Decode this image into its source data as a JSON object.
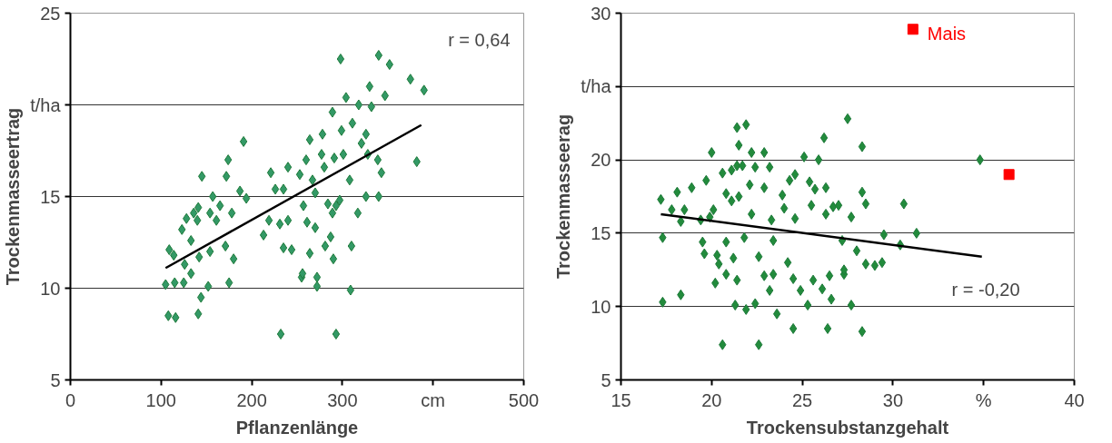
{
  "chart_data": [
    {
      "type": "scatter",
      "xlabel": "Pflanzenlänge",
      "ylabel": "Trockenmasseertrag",
      "xlim": [
        0,
        500
      ],
      "ylim": [
        5,
        25
      ],
      "xticks": [
        0,
        100,
        200,
        300,
        {
          "value": 400,
          "label": "cm"
        },
        500
      ],
      "yticks": [
        5,
        10,
        15,
        {
          "value": 20,
          "label": "t/ha"
        },
        25
      ],
      "grid": "y",
      "annotations": [
        "r = 0,64"
      ],
      "series": [
        {
          "color": "#339966",
          "marker": "diamond",
          "x": [
            105,
            108,
            116,
            115,
            125,
            141,
            144,
            152,
            175,
            109,
            114,
            123,
            128,
            136,
            141,
            145,
            157,
            165,
            172,
            174,
            191,
            187,
            194,
            178,
            180,
            161,
            154,
            133,
            126,
            133,
            142,
            154,
            171,
            140,
            221,
            213,
            219,
            226,
            240,
            235,
            231,
            235,
            244,
            240,
            232,
            255,
            256,
            264,
            272,
            272,
            261,
            270,
            257,
            260,
            264,
            278,
            289,
            277,
            280,
            284,
            289,
            287,
            281,
            290,
            293,
            309,
            310,
            317,
            326,
            340,
            343,
            339,
            328,
            298,
            340,
            352,
            375,
            390,
            382,
            347,
            330,
            304,
            318,
            332,
            326,
            311,
            299,
            301,
            308,
            297,
            293,
            291,
            321,
            267,
            253,
            270
          ],
          "values": [
            10.2,
            8.5,
            8.4,
            10.3,
            10.3,
            8.6,
            9.5,
            10.1,
            10.3,
            12.1,
            11.8,
            13.2,
            13.8,
            14.1,
            14.4,
            16.1,
            15.0,
            14.5,
            16.1,
            17.0,
            18.0,
            15.3,
            14.9,
            14.1,
            11.6,
            13.7,
            14.1,
            12.6,
            11.3,
            10.8,
            11.7,
            12.0,
            12.3,
            13.7,
            16.3,
            12.9,
            13.7,
            15.4,
            16.6,
            15.4,
            13.5,
            12.2,
            12.1,
            13.7,
            7.5,
            10.6,
            10.8,
            11.9,
            10.6,
            10.1,
            13.6,
            13.3,
            14.5,
            17.0,
            18.1,
            18.4,
            19.6,
            17.3,
            16.6,
            14.6,
            14.1,
            12.8,
            12.3,
            11.6,
            7.5,
            9.9,
            12.3,
            14.1,
            15.0,
            15.0,
            16.3,
            17.0,
            17.3,
            22.5,
            22.7,
            22.2,
            21.4,
            20.8,
            16.9,
            20.5,
            21.0,
            20.4,
            20.0,
            19.9,
            18.4,
            19.0,
            18.6,
            17.3,
            15.9,
            14.8,
            14.5,
            17.1,
            17.9,
            15.9,
            16.2,
            15.2
          ]
        },
        {
          "type": "line",
          "color": "#000000",
          "marker": "none",
          "x": [
            105,
            387
          ],
          "values": [
            11.1,
            18.9
          ]
        }
      ]
    },
    {
      "type": "scatter",
      "xlabel": "Trockensubstanzgehalt",
      "ylabel": "Trockenmasseerag",
      "xlim": [
        15,
        40
      ],
      "ylim": [
        5,
        30
      ],
      "xticks": [
        15,
        20,
        25,
        30,
        {
          "value": 35,
          "label": "%"
        },
        40
      ],
      "yticks": [
        5,
        10,
        15,
        20,
        {
          "value": 25,
          "label": "t/ha"
        },
        30
      ],
      "grid": "y",
      "annotations": [
        "r = -0,20"
      ],
      "series": [
        {
          "color": "#228b3c",
          "marker": "diamond",
          "x": [
            17.2,
            17.3,
            17.3,
            17.8,
            18.1,
            18.3,
            18.3,
            18.5,
            18.9,
            19.4,
            19.5,
            19.6,
            19.7,
            20.0,
            19.9,
            20.1,
            20.2,
            20.3,
            20.4,
            20.6,
            20.6,
            20.8,
            20.8,
            20.8,
            21.1,
            21.1,
            21.2,
            21.3,
            21.4,
            21.4,
            21.5,
            21.9,
            21.4,
            21.7,
            21.5,
            21.8,
            21.9,
            22.1,
            22.2,
            22.4,
            22.4,
            22.6,
            22.9,
            22.2,
            22.6,
            22.9,
            23.2,
            23.2,
            23.3,
            23.4,
            23.6,
            23.4,
            23.9,
            24.0,
            24.3,
            24.2,
            24.5,
            24.6,
            24.5,
            24.6,
            24.9,
            25.1,
            25.4,
            25.5,
            25.6,
            25.7,
            25.9,
            26.2,
            26.1,
            26.3,
            26.3,
            26.4,
            26.6,
            26.7,
            27.0,
            27.2,
            27.3,
            27.5,
            27.7,
            27.7,
            28.0,
            28.3,
            28.3,
            28.3,
            28.5,
            28.5,
            29.0,
            29.4,
            29.5,
            30.4,
            30.6,
            31.3,
            34.8,
            25.3,
            26.5,
            27.3,
            22.9
          ],
          "values": [
            17.3,
            14.7,
            10.3,
            16.6,
            17.8,
            15.8,
            10.8,
            16.6,
            18.1,
            15.9,
            14.4,
            13.6,
            18.6,
            20.5,
            16.1,
            16.6,
            11.6,
            13.5,
            12.9,
            7.4,
            19.1,
            17.7,
            14.4,
            12.2,
            19.3,
            17.2,
            13.3,
            10.1,
            22.2,
            11.8,
            21.0,
            22.4,
            19.6,
            19.6,
            17.5,
            14.7,
            9.8,
            18.3,
            20.5,
            19.5,
            10.2,
            7.4,
            20.5,
            16.3,
            13.4,
            18.1,
            19.5,
            11.1,
            15.9,
            12.2,
            9.5,
            14.5,
            17.6,
            16.7,
            18.6,
            13.0,
            8.5,
            19.0,
            11.9,
            16.0,
            11.1,
            20.2,
            18.5,
            16.9,
            11.8,
            18.0,
            20.0,
            21.5,
            11.2,
            16.3,
            18.1,
            8.5,
            10.5,
            16.8,
            16.9,
            14.5,
            12.2,
            22.8,
            10.1,
            16.1,
            13.8,
            20.9,
            17.8,
            8.3,
            17.0,
            12.9,
            12.8,
            13.0,
            14.9,
            14.2,
            17.0,
            15.0,
            20.0,
            10.1,
            12.1,
            12.5,
            12.1
          ]
        },
        {
          "name": "Mais",
          "color": "#ff0000",
          "marker": "square",
          "x": [
            31.1,
            36.4
          ],
          "values": [
            28.9,
            19.0
          ]
        },
        {
          "type": "line",
          "color": "#000000",
          "marker": "none",
          "x": [
            17.2,
            34.9
          ],
          "values": [
            16.3,
            13.4
          ]
        }
      ]
    }
  ]
}
